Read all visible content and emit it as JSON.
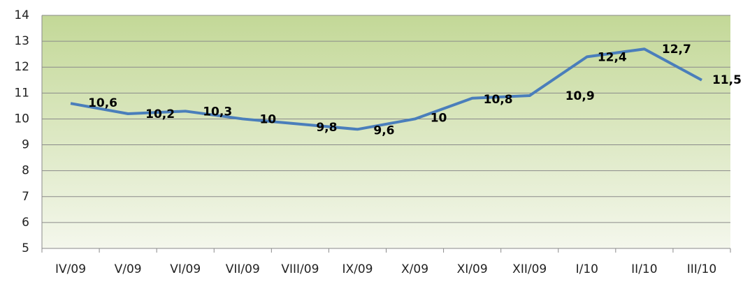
{
  "chart_data": {
    "type": "line",
    "categories": [
      "IV/09",
      "V/09",
      "VI/09",
      "VII/09",
      "VIII/09",
      "IX/09",
      "X/09",
      "XI/09",
      "XII/09",
      "I/10",
      "II/10",
      "III/10"
    ],
    "series": [
      {
        "color": "#4a7ebb",
        "values": [
          10.6,
          10.2,
          10.3,
          10,
          9.8,
          9.6,
          10,
          10.8,
          10.9,
          12.4,
          12.7,
          11.5
        ],
        "value_labels": [
          "10,6",
          "10,2",
          "10,3",
          "10",
          "9,8",
          "9,6",
          "10",
          "10,8",
          "10,9",
          "12,4",
          "12,7",
          "11,5"
        ]
      }
    ],
    "ylim": [
      5,
      14
    ],
    "yticks": [
      5,
      6,
      7,
      8,
      9,
      10,
      11,
      12,
      13,
      14
    ],
    "grid": true
  }
}
